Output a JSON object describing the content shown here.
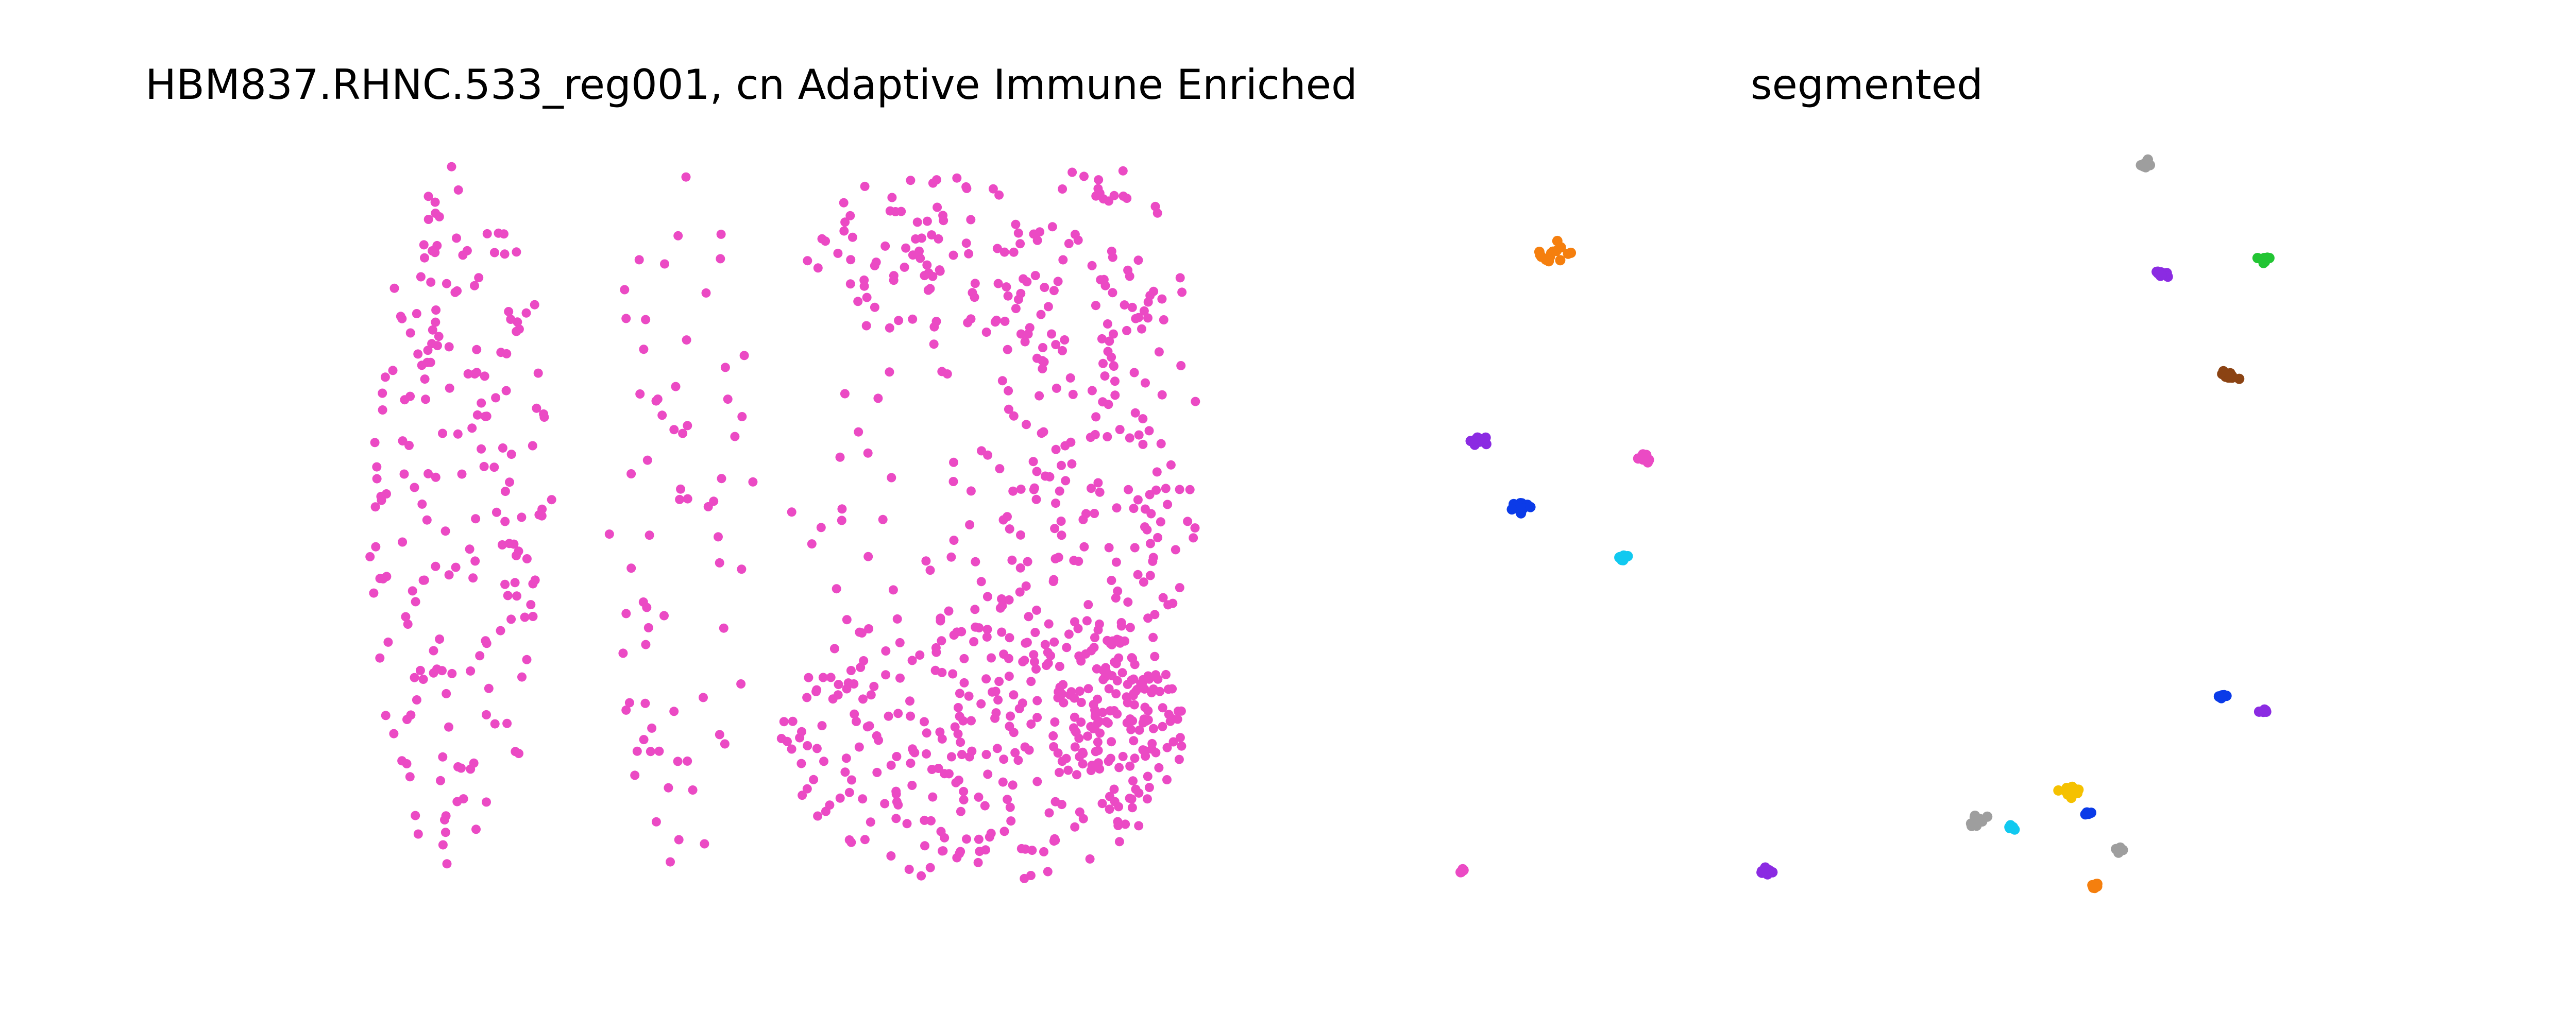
{
  "chart_data": [
    {
      "type": "scatter",
      "title": "HBM837.RHNC.533_reg001, cn Adaptive Immune Enriched",
      "xlabel": "",
      "ylabel": "",
      "axes": "off",
      "grid": false,
      "xlim": [
        0,
        100
      ],
      "ylim": [
        0,
        100
      ],
      "point_color": "#EB4AC4",
      "seed": 837,
      "regions": [
        {
          "cx": 12,
          "cy": 50,
          "rx": 11,
          "ry": 49,
          "n": 200
        },
        {
          "cx": 38,
          "cy": 50,
          "rx": 9,
          "ry": 48,
          "n": 70
        },
        {
          "cx": 67,
          "cy": 86,
          "rx": 14,
          "ry": 12,
          "n": 90
        },
        {
          "cx": 74,
          "cy": 20,
          "rx": 24,
          "ry": 20,
          "n": 300
        },
        {
          "cx": 88,
          "cy": 60,
          "rx": 12,
          "ry": 40,
          "n": 230
        },
        {
          "cx": 66,
          "cy": 52,
          "rx": 16,
          "ry": 20,
          "n": 40
        },
        {
          "cx": 90,
          "cy": 22,
          "rx": 8,
          "ry": 12,
          "n": 80
        }
      ]
    },
    {
      "type": "scatter",
      "title": "segmented",
      "xlabel": "",
      "ylabel": "",
      "axes": "off",
      "grid": false,
      "xlim": [
        0,
        100
      ],
      "ylim": [
        0,
        100
      ],
      "seed": 533,
      "clusters": [
        {
          "x": 82,
          "y": 99,
          "color": "#9E9E9E",
          "n": 14,
          "spread": 0.9
        },
        {
          "x": 12,
          "y": 87,
          "color": "#F57F0E",
          "n": 14,
          "spread": 1.8
        },
        {
          "x": 84,
          "y": 84,
          "color": "#8B2BE2",
          "n": 10,
          "spread": 0.7
        },
        {
          "x": 96,
          "y": 86,
          "color": "#22C533",
          "n": 10,
          "spread": 0.8
        },
        {
          "x": 92,
          "y": 70,
          "color": "#8B4313",
          "n": 14,
          "spread": 1.0
        },
        {
          "x": 3,
          "y": 61,
          "color": "#8B2BE2",
          "n": 14,
          "spread": 0.8
        },
        {
          "x": 23,
          "y": 59,
          "color": "#EB4AC4",
          "n": 10,
          "spread": 0.8
        },
        {
          "x": 8,
          "y": 52,
          "color": "#0B3BE8",
          "n": 14,
          "spread": 1.2
        },
        {
          "x": 20,
          "y": 45,
          "color": "#11C9F0",
          "n": 10,
          "spread": 0.7
        },
        {
          "x": 91,
          "y": 26,
          "color": "#0B3BE8",
          "n": 10,
          "spread": 0.7
        },
        {
          "x": 96,
          "y": 24,
          "color": "#8B2BE2",
          "n": 6,
          "spread": 0.5
        },
        {
          "x": 73,
          "y": 13,
          "color": "#F5C100",
          "n": 18,
          "spread": 1.2
        },
        {
          "x": 75,
          "y": 10,
          "color": "#0B3BE8",
          "n": 6,
          "spread": 0.5
        },
        {
          "x": 62,
          "y": 9,
          "color": "#9E9E9E",
          "n": 12,
          "spread": 1.0
        },
        {
          "x": 66,
          "y": 8,
          "color": "#11C9F0",
          "n": 6,
          "spread": 0.5
        },
        {
          "x": 79,
          "y": 5,
          "color": "#9E9E9E",
          "n": 6,
          "spread": 0.5
        },
        {
          "x": 1,
          "y": 2,
          "color": "#EB4AC4",
          "n": 6,
          "spread": 0.5
        },
        {
          "x": 37,
          "y": 2,
          "color": "#8B2BE2",
          "n": 10,
          "spread": 0.7
        },
        {
          "x": 76,
          "y": 0,
          "color": "#F57F0E",
          "n": 8,
          "spread": 0.6
        }
      ]
    }
  ]
}
